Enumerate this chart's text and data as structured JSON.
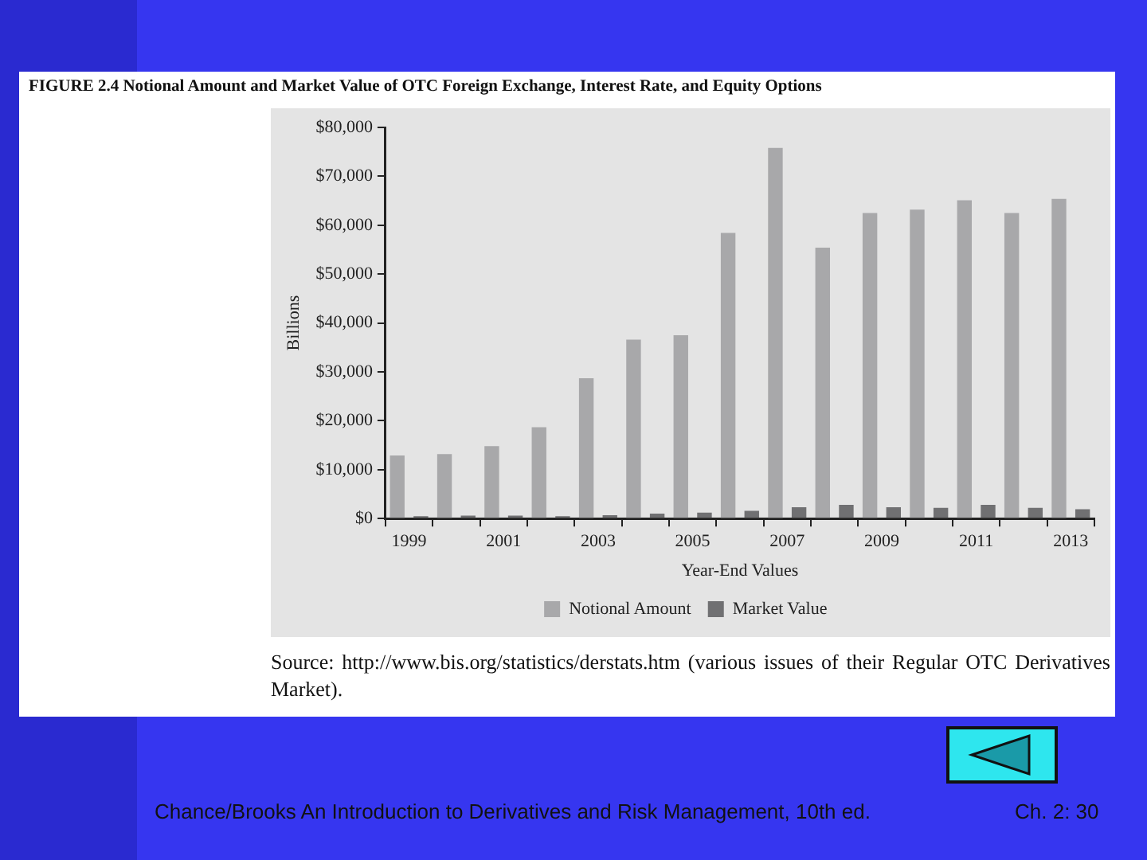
{
  "chart_data": {
    "type": "bar",
    "title": "FIGURE 2.4  Notional Amount and Market Value of OTC Foreign Exchange, Interest Rate, and Equity Options",
    "xlabel": "Year-End Values",
    "ylabel": "Billions",
    "categories": [
      "1999",
      null,
      "2001",
      null,
      "2003",
      null,
      "2005",
      null,
      "2007",
      null,
      "2009",
      null,
      "2011",
      null,
      "2013"
    ],
    "series": [
      {
        "name": "Notional Amount",
        "color": "#a8a8aa",
        "values": [
          12900,
          13200,
          14800,
          18700,
          28700,
          36600,
          37500,
          58400,
          75800,
          55400,
          62500,
          63200,
          65100,
          62500,
          65400
        ]
      },
      {
        "name": "Market Value",
        "color": "#707072",
        "values": [
          500,
          600,
          600,
          500,
          700,
          1000,
          1200,
          1600,
          2300,
          2800,
          2300,
          2200,
          2800,
          2200,
          1900
        ]
      }
    ],
    "ylim": [
      0,
      80000
    ],
    "yticks": [
      {
        "value": 0,
        "label": "$0"
      },
      {
        "value": 10000,
        "label": "$10,000"
      },
      {
        "value": 20000,
        "label": "$20,000"
      },
      {
        "value": 30000,
        "label": "$30,000"
      },
      {
        "value": 40000,
        "label": "$40,000"
      },
      {
        "value": 50000,
        "label": "$50,000"
      },
      {
        "value": 60000,
        "label": "$60,000"
      },
      {
        "value": 70000,
        "label": "$70,000"
      },
      {
        "value": 80000,
        "label": "$80,000"
      }
    ],
    "grid": false,
    "legend": "bottom",
    "annotations": [
      "Source: http://www.bis.org/statistics/derstats.htm (various issues of their Regular OTC Derivatives Market).",
      "Chance/Brooks   An Introduction to Derivatives and Risk Management, 10th ed.",
      "Ch. 2: 30"
    ]
  }
}
